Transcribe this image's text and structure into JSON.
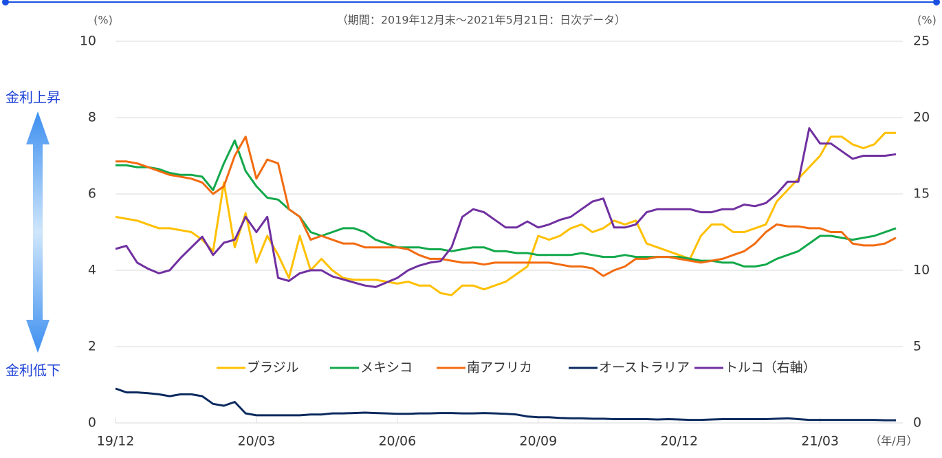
{
  "chart_data": {
    "type": "line",
    "subtitle": "（期間：2019年12月末～2021年5月21日：日次データ）",
    "y_label": "(%)",
    "y2_label": "(%)",
    "x_label": "（年/月）",
    "annotations": [
      "金利上昇",
      "金利低下"
    ],
    "categories": [
      "19/12",
      null,
      null,
      null,
      null,
      null,
      null,
      null,
      null,
      null,
      null,
      null,
      null,
      "20/03",
      null,
      null,
      null,
      null,
      null,
      null,
      null,
      null,
      null,
      null,
      null,
      null,
      "20/06",
      null,
      null,
      null,
      null,
      null,
      null,
      null,
      null,
      null,
      null,
      null,
      null,
      "20/09",
      null,
      null,
      null,
      null,
      null,
      null,
      null,
      null,
      null,
      null,
      null,
      null,
      "20/12",
      null,
      null,
      null,
      null,
      null,
      null,
      null,
      null,
      null,
      null,
      null,
      null,
      "21/03",
      null,
      null,
      null,
      null,
      null,
      null,
      null
    ],
    "ylim": [
      0,
      10
    ],
    "yticks": [
      0,
      2,
      4,
      6,
      8,
      10
    ],
    "y2lim": [
      0,
      25
    ],
    "y2ticks": [
      0,
      5,
      10,
      15,
      20,
      25
    ],
    "grid": true,
    "series": [
      {
        "name": "ブラジル",
        "color": "#ffc000",
        "values": [
          5.4,
          5.35,
          5.3,
          5.2,
          5.1,
          5.1,
          5.05,
          5.0,
          4.8,
          4.5,
          6.3,
          4.6,
          5.5,
          4.2,
          4.9,
          4.4,
          3.8,
          4.9,
          4.0,
          4.3,
          4.0,
          3.8,
          3.75,
          3.75,
          3.75,
          3.7,
          3.65,
          3.7,
          3.6,
          3.6,
          3.4,
          3.35,
          3.6,
          3.6,
          3.5,
          3.6,
          3.7,
          3.9,
          4.1,
          4.9,
          4.8,
          4.9,
          5.1,
          5.2,
          5.0,
          5.1,
          5.3,
          5.2,
          5.3,
          4.7,
          4.6,
          4.5,
          4.4,
          4.3,
          4.9,
          5.2,
          5.2,
          5.0,
          5.0,
          5.1,
          5.2,
          5.8,
          6.1,
          6.4,
          6.7,
          7.0,
          7.5,
          7.5,
          7.3,
          7.2,
          7.3,
          7.6,
          7.6
        ]
      },
      {
        "name": "メキシコ",
        "color": "#12a84a",
        "values": [
          6.75,
          6.75,
          6.7,
          6.7,
          6.65,
          6.55,
          6.5,
          6.5,
          6.45,
          6.1,
          6.8,
          7.4,
          6.6,
          6.2,
          5.9,
          5.85,
          5.6,
          5.4,
          5.0,
          4.9,
          5.0,
          5.1,
          5.1,
          5.0,
          4.8,
          4.7,
          4.6,
          4.6,
          4.6,
          4.55,
          4.55,
          4.5,
          4.55,
          4.6,
          4.6,
          4.5,
          4.5,
          4.45,
          4.45,
          4.4,
          4.4,
          4.4,
          4.4,
          4.45,
          4.4,
          4.35,
          4.35,
          4.4,
          4.35,
          4.35,
          4.35,
          4.35,
          4.35,
          4.3,
          4.25,
          4.25,
          4.2,
          4.2,
          4.1,
          4.1,
          4.15,
          4.3,
          4.4,
          4.5,
          4.7,
          4.9,
          4.9,
          4.85,
          4.8,
          4.85,
          4.9,
          5.0,
          5.1
        ]
      },
      {
        "name": "南アフリカ",
        "color": "#f26b10",
        "values": [
          6.85,
          6.85,
          6.8,
          6.7,
          6.6,
          6.5,
          6.45,
          6.4,
          6.3,
          6.0,
          6.2,
          7.0,
          7.5,
          6.4,
          6.9,
          6.8,
          5.6,
          5.4,
          4.8,
          4.9,
          4.8,
          4.7,
          4.7,
          4.6,
          4.6,
          4.6,
          4.6,
          4.55,
          4.4,
          4.3,
          4.3,
          4.25,
          4.2,
          4.2,
          4.15,
          4.2,
          4.2,
          4.2,
          4.2,
          4.2,
          4.2,
          4.15,
          4.1,
          4.1,
          4.05,
          3.85,
          4.0,
          4.1,
          4.3,
          4.3,
          4.35,
          4.35,
          4.3,
          4.25,
          4.2,
          4.25,
          4.3,
          4.4,
          4.5,
          4.7,
          5.0,
          5.2,
          5.15,
          5.15,
          5.1,
          5.1,
          5.0,
          5.0,
          4.7,
          4.65,
          4.65,
          4.7,
          4.85
        ]
      },
      {
        "name": "オーストラリア",
        "color": "#0b2a5e",
        "values": [
          0.9,
          0.8,
          0.8,
          0.78,
          0.75,
          0.7,
          0.75,
          0.75,
          0.7,
          0.5,
          0.45,
          0.55,
          0.25,
          0.2,
          0.2,
          0.2,
          0.2,
          0.2,
          0.22,
          0.22,
          0.25,
          0.25,
          0.26,
          0.27,
          0.26,
          0.25,
          0.24,
          0.24,
          0.25,
          0.25,
          0.26,
          0.26,
          0.25,
          0.25,
          0.26,
          0.25,
          0.24,
          0.22,
          0.17,
          0.15,
          0.15,
          0.13,
          0.12,
          0.12,
          0.11,
          0.11,
          0.1,
          0.1,
          0.1,
          0.1,
          0.09,
          0.1,
          0.09,
          0.08,
          0.08,
          0.09,
          0.1,
          0.1,
          0.1,
          0.1,
          0.1,
          0.11,
          0.12,
          0.1,
          0.08,
          0.08,
          0.08,
          0.08,
          0.08,
          0.08,
          0.08,
          0.07,
          0.07
        ]
      },
      {
        "name": "トルコ（右軸）",
        "color": "#7030a0",
        "axis": "y2",
        "values": [
          11.4,
          11.6,
          10.5,
          10.1,
          9.8,
          10.0,
          10.8,
          11.5,
          12.2,
          11.0,
          11.8,
          12.0,
          13.5,
          12.5,
          13.5,
          9.5,
          9.3,
          9.8,
          10.0,
          10.0,
          9.6,
          9.4,
          9.2,
          9.0,
          8.9,
          9.2,
          9.5,
          10.0,
          10.3,
          10.5,
          10.6,
          11.5,
          13.5,
          14.0,
          13.8,
          13.3,
          12.8,
          12.8,
          13.2,
          12.8,
          13.0,
          13.3,
          13.5,
          14.0,
          14.5,
          14.7,
          12.8,
          12.8,
          13.0,
          13.8,
          14.0,
          14.0,
          14.0,
          14.0,
          13.8,
          13.8,
          14.0,
          14.0,
          14.3,
          14.2,
          14.4,
          15.0,
          15.8,
          15.8,
          19.3,
          18.3,
          18.3,
          17.8,
          17.3,
          17.5,
          17.5,
          17.5,
          17.6
        ]
      }
    ]
  }
}
